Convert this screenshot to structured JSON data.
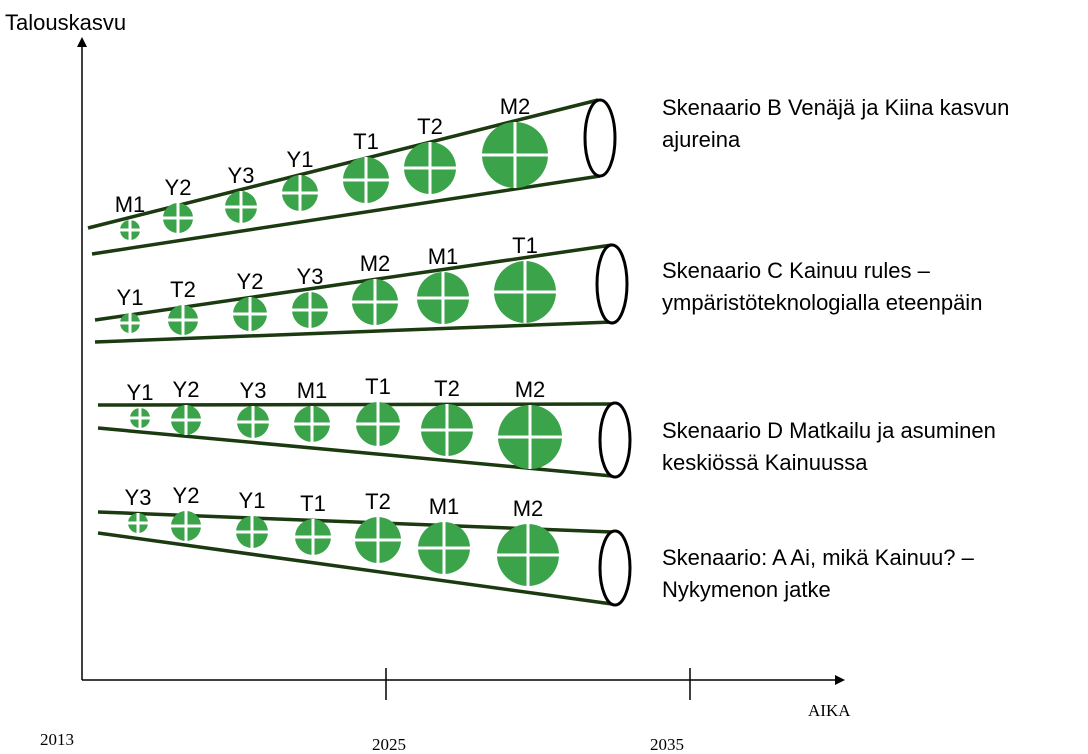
{
  "y_axis_label": "Talouskasvu",
  "x_axis_label": "AIKA",
  "years": [
    "2013",
    "2025",
    "2035"
  ],
  "scenarios": [
    {
      "labels": [
        "M1",
        "Y2",
        "Y3",
        "Y1",
        "T1",
        "T2",
        "M2"
      ],
      "description": [
        "Skenaario B Venäjä ja Kiina kasvun",
        "ajureina"
      ]
    },
    {
      "labels": [
        "Y1",
        "T2",
        "Y2",
        "Y3",
        "M2",
        "M1",
        "T1"
      ],
      "description": [
        "Skenaario C Kainuu rules –",
        "ympäristöteknologialla eteenpäin"
      ]
    },
    {
      "labels": [
        "Y1",
        "Y2",
        "Y3",
        "M1",
        "T1",
        "T2",
        "M2"
      ],
      "description": [
        "Skenaario D Matkailu ja asuminen",
        "keskiössä Kainuussa"
      ]
    },
    {
      "labels": [
        "Y3",
        "Y2",
        "Y1",
        "T1",
        "T2",
        "M1",
        "M2"
      ],
      "description": [
        "Skenaario: A Ai, mikä Kainuu? –",
        "Nykymenon jatke"
      ]
    }
  ]
}
